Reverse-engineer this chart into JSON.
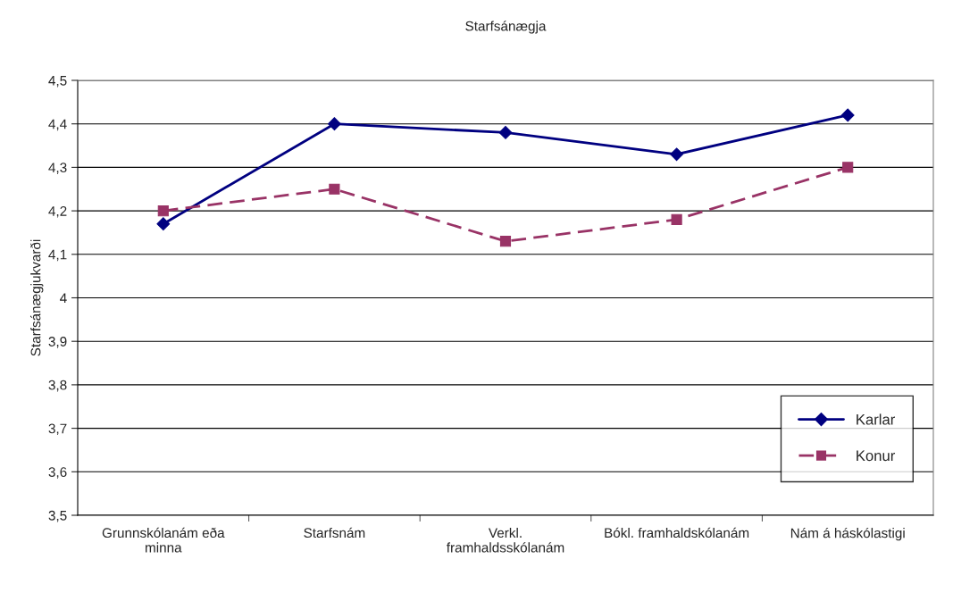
{
  "chart_data": {
    "type": "line",
    "title": "Starfsánægja",
    "ylabel": "Starfsánægjukvarði",
    "categories": [
      "Grunnskólanám eða\nminna",
      "Starfsnám",
      "Verkl.\nframhaldsskólanám",
      "Bókl. framhaldskólanám",
      "Nám á háskólastigi"
    ],
    "series": [
      {
        "name": "Karlar",
        "color": "#000080",
        "values": [
          4.17,
          4.4,
          4.38,
          4.33,
          4.42
        ],
        "marker": "diamond",
        "line_style": "solid"
      },
      {
        "name": "Konur",
        "color": "#993366",
        "values": [
          4.2,
          4.25,
          4.13,
          4.18,
          4.3
        ],
        "marker": "square",
        "line_style": "dashed"
      }
    ],
    "ylim": [
      3.5,
      4.5
    ],
    "yticks": [
      {
        "value": 3.5,
        "label": "3,5"
      },
      {
        "value": 3.6,
        "label": "3,6"
      },
      {
        "value": 3.7,
        "label": "3,7"
      },
      {
        "value": 3.8,
        "label": "3,8"
      },
      {
        "value": 3.9,
        "label": "3,9"
      },
      4,
      {
        "value": 4.1,
        "label": "4,1"
      },
      {
        "value": 4.2,
        "label": "4,2"
      },
      {
        "value": 4.3,
        "label": "4,3"
      },
      {
        "value": 4.4,
        "label": "4,4"
      },
      {
        "value": 4.5,
        "label": "4,5"
      }
    ],
    "grid": "y",
    "legend": "bottom right"
  }
}
